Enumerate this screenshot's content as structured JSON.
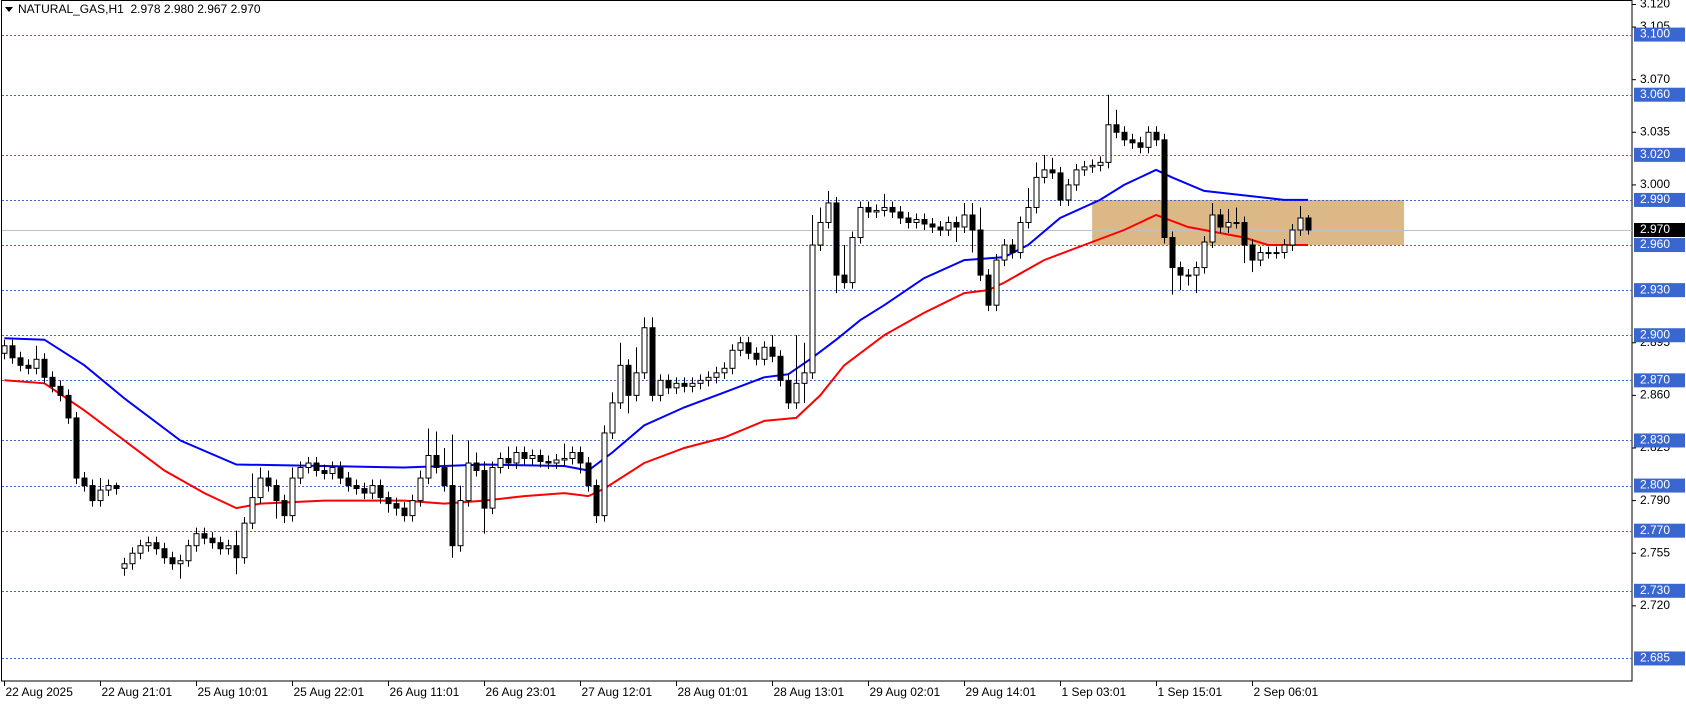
{
  "chart_data": {
    "type": "candlestick",
    "header": "NATURAL_GAS,H1  2.978 2.980 2.967 2.970",
    "up_color": "#ffffff",
    "down_color": "#000000",
    "open": [
      2.888,
      2.893,
      2.885,
      2.88,
      2.878,
      2.884,
      2.872,
      2.866,
      2.86,
      2.845,
      2.805,
      2.8,
      2.79,
      2.797,
      2.8,
      2.745,
      2.748,
      2.755,
      2.76,
      2.762,
      2.758,
      2.752,
      2.748,
      2.75,
      2.76,
      2.768,
      2.765,
      2.762,
      2.758,
      2.76,
      2.752,
      2.775,
      2.792,
      2.805,
      2.8,
      2.79,
      2.78,
      2.805,
      2.812,
      2.815,
      2.81,
      2.808,
      2.812,
      2.805,
      2.8,
      2.798,
      2.795,
      2.8,
      2.792,
      2.788,
      2.785,
      2.78,
      2.79,
      2.805,
      2.82,
      2.812,
      2.8,
      2.76,
      2.79,
      2.815,
      2.81,
      2.785,
      2.812,
      2.818,
      2.815,
      2.822,
      2.818,
      2.82,
      2.816,
      2.815,
      2.817,
      2.818,
      2.822,
      2.815,
      2.8,
      2.78,
      2.835,
      2.855,
      2.88,
      2.86,
      2.875,
      2.905,
      2.86,
      2.87,
      2.865,
      2.868,
      2.866,
      2.868,
      2.87,
      2.872,
      2.875,
      2.878,
      2.89,
      2.895,
      2.888,
      2.884,
      2.892,
      2.886,
      2.87,
      2.855,
      2.868,
      2.875,
      2.96,
      2.975,
      2.988,
      2.94,
      2.935,
      2.965,
      2.985,
      2.982,
      2.983,
      2.985,
      2.982,
      2.978,
      2.975,
      2.977,
      2.974,
      2.972,
      2.97,
      2.975,
      2.972,
      2.98,
      2.97,
      2.94,
      2.92,
      2.95,
      2.96,
      2.955,
      2.975,
      2.985,
      3.005,
      3.01,
      3.008,
      2.99,
      3.0,
      3.01,
      3.012,
      3.013,
      3.015,
      3.04,
      3.035,
      3.03,
      3.028,
      3.025,
      3.035,
      3.03,
      2.965,
      2.945,
      2.94,
      2.94,
      2.945,
      2.962,
      2.98,
      2.972,
      2.975,
      2.975,
      2.96,
      2.95,
      2.955,
      2.955,
      2.955,
      2.96,
      2.97,
      2.978
    ],
    "high": [
      2.897,
      2.897,
      2.889,
      2.884,
      2.893,
      2.888,
      2.876,
      2.87,
      2.864,
      2.849,
      2.809,
      2.804,
      2.805,
      2.804,
      2.802,
      2.752,
      2.759,
      2.764,
      2.766,
      2.766,
      2.762,
      2.756,
      2.754,
      2.764,
      2.772,
      2.772,
      2.769,
      2.766,
      2.764,
      2.77,
      2.779,
      2.808,
      2.812,
      2.81,
      2.804,
      2.794,
      2.812,
      2.816,
      2.819,
      2.819,
      2.814,
      2.816,
      2.816,
      2.809,
      2.804,
      2.802,
      2.804,
      2.804,
      2.796,
      2.792,
      2.789,
      2.794,
      2.81,
      2.838,
      2.836,
      2.825,
      2.834,
      2.8,
      2.83,
      2.822,
      2.816,
      2.816,
      2.822,
      2.826,
      2.826,
      2.826,
      2.824,
      2.824,
      2.82,
      2.821,
      2.828,
      2.826,
      2.826,
      2.819,
      2.804,
      2.84,
      2.862,
      2.895,
      2.884,
      2.892,
      2.912,
      2.912,
      2.874,
      2.874,
      2.872,
      2.872,
      2.872,
      2.874,
      2.876,
      2.879,
      2.882,
      2.894,
      2.899,
      2.899,
      2.892,
      2.896,
      2.9,
      2.89,
      2.874,
      2.9,
      2.895,
      2.98,
      2.985,
      2.996,
      2.992,
      2.96,
      2.969,
      2.989,
      2.989,
      2.987,
      2.994,
      2.989,
      2.986,
      2.982,
      2.981,
      2.981,
      2.978,
      2.976,
      2.979,
      2.979,
      2.988,
      2.988,
      2.985,
      2.944,
      2.954,
      2.964,
      2.964,
      2.979,
      2.998,
      3.015,
      3.02,
      3.018,
      3.012,
      3.004,
      3.014,
      3.016,
      3.017,
      3.019,
      3.06,
      3.05,
      3.039,
      3.034,
      3.032,
      3.039,
      3.039,
      3.034,
      2.969,
      2.949,
      2.944,
      2.949,
      2.966,
      2.988,
      2.984,
      2.984,
      2.985,
      2.979,
      2.964,
      2.959,
      2.959,
      2.959,
      2.964,
      2.974,
      2.986,
      2.98
    ],
    "low": [
      2.884,
      2.881,
      2.876,
      2.874,
      2.874,
      2.868,
      2.862,
      2.856,
      2.841,
      2.801,
      2.796,
      2.786,
      2.786,
      2.793,
      2.794,
      2.74,
      2.744,
      2.751,
      2.756,
      2.754,
      2.748,
      2.744,
      2.738,
      2.746,
      2.756,
      2.761,
      2.758,
      2.754,
      2.754,
      2.741,
      2.748,
      2.771,
      2.788,
      2.796,
      2.778,
      2.775,
      2.776,
      2.801,
      2.808,
      2.806,
      2.804,
      2.804,
      2.801,
      2.796,
      2.794,
      2.791,
      2.791,
      2.788,
      2.782,
      2.78,
      2.776,
      2.776,
      2.786,
      2.801,
      2.808,
      2.796,
      2.752,
      2.756,
      2.786,
      2.806,
      2.768,
      2.781,
      2.808,
      2.811,
      2.811,
      2.814,
      2.814,
      2.812,
      2.811,
      2.811,
      2.813,
      2.814,
      2.808,
      2.796,
      2.775,
      2.776,
      2.831,
      2.851,
      2.848,
      2.856,
      2.871,
      2.856,
      2.856,
      2.861,
      2.861,
      2.862,
      2.862,
      2.864,
      2.866,
      2.868,
      2.871,
      2.874,
      2.886,
      2.884,
      2.88,
      2.88,
      2.882,
      2.866,
      2.851,
      2.851,
      2.855,
      2.871,
      2.956,
      2.971,
      2.928,
      2.931,
      2.931,
      2.961,
      2.978,
      2.978,
      2.979,
      2.978,
      2.974,
      2.971,
      2.971,
      2.97,
      2.968,
      2.966,
      2.966,
      2.962,
      2.968,
      2.955,
      2.936,
      2.916,
      2.916,
      2.946,
      2.951,
      2.951,
      2.971,
      2.981,
      3.001,
      3.004,
      2.986,
      2.986,
      2.996,
      3.006,
      3.008,
      3.009,
      3.011,
      3.031,
      3.026,
      3.024,
      3.021,
      3.021,
      3.026,
      2.961,
      2.927,
      2.93,
      2.933,
      2.928,
      2.941,
      2.958,
      2.968,
      2.968,
      2.971,
      2.948,
      2.942,
      2.946,
      2.951,
      2.951,
      2.951,
      2.956,
      2.966,
      2.967
    ],
    "close": [
      2.893,
      2.885,
      2.88,
      2.878,
      2.884,
      2.872,
      2.866,
      2.86,
      2.845,
      2.805,
      2.8,
      2.79,
      2.797,
      2.8,
      2.798,
      2.748,
      2.755,
      2.76,
      2.762,
      2.758,
      2.752,
      2.748,
      2.75,
      2.76,
      2.768,
      2.765,
      2.762,
      2.758,
      2.76,
      2.752,
      2.775,
      2.792,
      2.805,
      2.8,
      2.79,
      2.78,
      2.805,
      2.812,
      2.815,
      2.81,
      2.808,
      2.812,
      2.805,
      2.8,
      2.798,
      2.795,
      2.8,
      2.792,
      2.788,
      2.785,
      2.78,
      2.79,
      2.805,
      2.82,
      2.812,
      2.8,
      2.76,
      2.79,
      2.815,
      2.81,
      2.785,
      2.812,
      2.818,
      2.815,
      2.822,
      2.818,
      2.82,
      2.816,
      2.815,
      2.817,
      2.818,
      2.822,
      2.815,
      2.8,
      2.78,
      2.835,
      2.855,
      2.88,
      2.86,
      2.875,
      2.905,
      2.86,
      2.87,
      2.865,
      2.868,
      2.866,
      2.868,
      2.87,
      2.872,
      2.875,
      2.878,
      2.89,
      2.895,
      2.888,
      2.884,
      2.892,
      2.886,
      2.87,
      2.855,
      2.868,
      2.875,
      2.96,
      2.975,
      2.988,
      2.94,
      2.935,
      2.965,
      2.985,
      2.982,
      2.983,
      2.985,
      2.982,
      2.978,
      2.975,
      2.977,
      2.974,
      2.972,
      2.97,
      2.975,
      2.972,
      2.98,
      2.97,
      2.94,
      2.92,
      2.95,
      2.96,
      2.955,
      2.975,
      2.985,
      3.005,
      3.01,
      3.008,
      2.99,
      3.0,
      3.01,
      3.012,
      3.013,
      3.015,
      3.04,
      3.035,
      3.03,
      3.028,
      3.025,
      3.035,
      3.03,
      2.965,
      2.945,
      2.94,
      2.94,
      2.945,
      2.962,
      2.98,
      2.972,
      2.975,
      2.975,
      2.96,
      2.95,
      2.955,
      2.955,
      2.955,
      2.96,
      2.97,
      2.978,
      2.97
    ],
    "lines": [
      {
        "color": "#0000ff",
        "x": [
          0,
          5,
          10,
          15,
          22,
          29,
          40,
          50,
          60,
          70,
          73,
          76,
          80,
          85,
          90,
          95,
          98,
          101,
          104,
          107,
          110,
          115,
          120,
          125,
          128,
          132,
          137,
          140,
          144,
          146,
          150,
          155,
          160,
          163
        ],
        "values": [
          2.898,
          2.897,
          2.88,
          2.858,
          2.83,
          2.814,
          2.813,
          2.812,
          2.814,
          2.813,
          2.81,
          2.822,
          2.84,
          2.852,
          2.862,
          2.872,
          2.874,
          2.885,
          2.897,
          2.91,
          2.92,
          2.938,
          2.95,
          2.952,
          2.96,
          2.978,
          2.99,
          3.0,
          3.01,
          3.005,
          2.996,
          2.993,
          2.99,
          2.99
        ]
      },
      {
        "color": "#ff0000",
        "x": [
          0,
          5,
          10,
          15,
          20,
          25,
          29,
          32,
          40,
          50,
          55,
          60,
          65,
          70,
          73,
          75,
          80,
          85,
          90,
          95,
          99,
          102,
          105,
          110,
          115,
          120,
          123,
          125,
          130,
          135,
          140,
          144,
          148,
          152,
          155,
          158,
          163
        ],
        "values": [
          2.87,
          2.868,
          2.85,
          2.83,
          2.81,
          2.795,
          2.785,
          2.788,
          2.79,
          2.79,
          2.788,
          2.79,
          2.793,
          2.795,
          2.793,
          2.798,
          2.815,
          2.825,
          2.832,
          2.843,
          2.845,
          2.86,
          2.88,
          2.9,
          2.915,
          2.928,
          2.93,
          2.935,
          2.95,
          2.96,
          2.97,
          2.98,
          2.972,
          2.968,
          2.965,
          2.96,
          2.96
        ]
      }
    ],
    "zone": {
      "x": [
        136,
        175
      ],
      "y": [
        2.96,
        2.99
      ],
      "color": "#dcb887"
    },
    "level_color": "#3a66d0",
    "levels": [
      {
        "value": 3.1,
        "label": "3.100"
      },
      {
        "value": 3.06,
        "label": "3.060"
      },
      {
        "value": 3.02,
        "label": "3.020"
      },
      {
        "value": 2.99,
        "label": "2.990"
      },
      {
        "value": 2.96,
        "label": "2.960"
      },
      {
        "value": 2.93,
        "label": "2.930"
      },
      {
        "value": 2.9,
        "label": "2.900"
      },
      {
        "value": 2.87,
        "label": "2.870"
      },
      {
        "value": 2.83,
        "label": "2.830"
      },
      {
        "value": 2.8,
        "label": "2.800"
      },
      {
        "value": 2.77,
        "label": "2.770"
      },
      {
        "value": 2.73,
        "label": "2.730"
      },
      {
        "value": 2.685,
        "label": "2.685"
      }
    ],
    "current": {
      "value": 2.97,
      "label": "2.970"
    },
    "xlim": [
      -0.3,
      203.5
    ],
    "xticks": [
      {
        "value": 0,
        "label": "22 Aug 2025"
      },
      {
        "value": 12,
        "label": "22 Aug 21:01"
      },
      {
        "value": 24,
        "label": "25 Aug 10:01"
      },
      {
        "value": 36,
        "label": "25 Aug 22:01"
      },
      {
        "value": 48,
        "label": "26 Aug 11:01"
      },
      {
        "value": 60,
        "label": "26 Aug 23:01"
      },
      {
        "value": 72,
        "label": "27 Aug 12:01"
      },
      {
        "value": 84,
        "label": "28 Aug 01:01"
      },
      {
        "value": 96,
        "label": "28 Aug 13:01"
      },
      {
        "value": 108,
        "label": "29 Aug 02:01"
      },
      {
        "value": 120,
        "label": "29 Aug 14:01"
      },
      {
        "value": 132,
        "label": "1 Sep 03:01"
      },
      {
        "value": 144,
        "label": "1 Sep 15:01"
      },
      {
        "value": 156,
        "label": "2 Sep 06:01"
      }
    ],
    "ylim": [
      2.67,
      3.123
    ],
    "yticks": [
      {
        "value": 3.12,
        "label": "3.120"
      },
      {
        "value": 3.105,
        "label": "3.105"
      },
      {
        "value": 3.07,
        "label": "3.070"
      },
      {
        "value": 3.035,
        "label": "3.035"
      },
      {
        "value": 3.0,
        "label": "3.000"
      },
      {
        "value": 2.895,
        "label": "2.895"
      },
      {
        "value": 2.86,
        "label": "2.860"
      },
      {
        "value": 2.825,
        "label": "2.825"
      },
      {
        "value": 2.79,
        "label": "2.790"
      },
      {
        "value": 2.755,
        "label": "2.755"
      },
      {
        "value": 2.72,
        "label": "2.720"
      }
    ]
  }
}
